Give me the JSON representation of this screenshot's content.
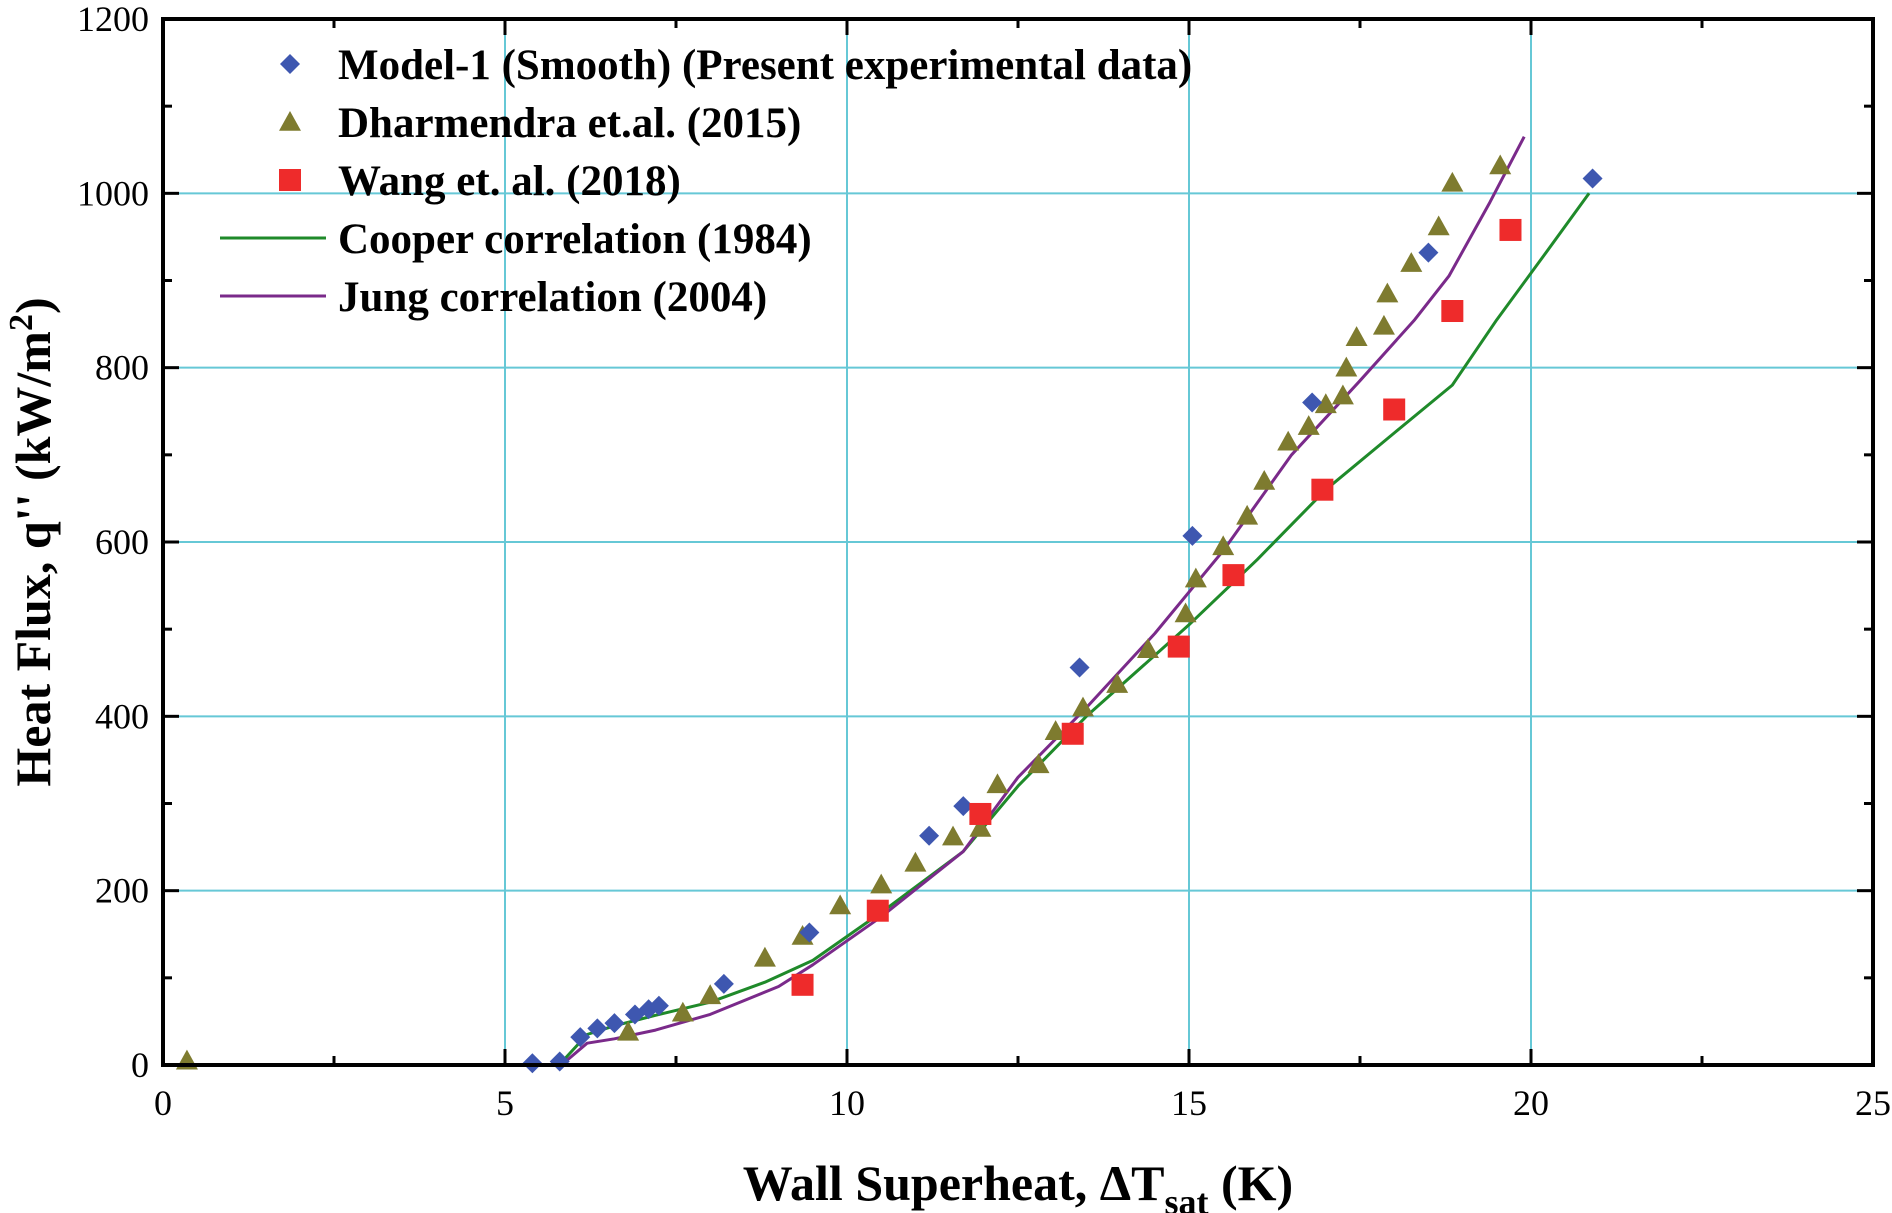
{
  "chart_data": {
    "type": "scatter",
    "xlabel_main": "Wall Superheat, ΔT",
    "xlabel_sub": "sat",
    "xlabel_unit": " (K)",
    "ylabel_main": "Heat Flux, q'' (kW/m",
    "ylabel_sup": "2",
    "ylabel_close": ")",
    "xlim": [
      0,
      25
    ],
    "ylim": [
      0,
      1200
    ],
    "xticks": [
      0,
      5,
      10,
      15,
      20,
      25
    ],
    "yticks": [
      0,
      200,
      400,
      600,
      800,
      1000,
      1200
    ],
    "grid": true,
    "legend_position": "top-left",
    "colors": {
      "grid": "#66c8d6",
      "model1": "#3e57b0",
      "dharmendra": "#7e7b2f",
      "wang": "#ee2b2b",
      "cooper": "#1f8a2a",
      "jung": "#7a2a8a"
    },
    "series": [
      {
        "name": "Model-1 (Smooth) (Present experimental data)",
        "kind": "scatter",
        "marker": "diamond",
        "color_key": "model1",
        "points": [
          [
            5.4,
            2
          ],
          [
            5.8,
            4
          ],
          [
            6.1,
            32
          ],
          [
            6.35,
            42
          ],
          [
            6.6,
            48
          ],
          [
            6.9,
            58
          ],
          [
            7.1,
            64
          ],
          [
            7.25,
            68
          ],
          [
            8.2,
            93
          ],
          [
            9.45,
            152
          ],
          [
            11.2,
            263
          ],
          [
            11.7,
            297
          ],
          [
            13.4,
            456
          ],
          [
            15.05,
            607
          ],
          [
            16.8,
            760
          ],
          [
            18.5,
            932
          ],
          [
            20.9,
            1017
          ]
        ]
      },
      {
        "name": "Dharmendra et.al. (2015)",
        "kind": "scatter",
        "marker": "triangle",
        "color_key": "dharmendra",
        "points": [
          [
            0.35,
            5
          ],
          [
            6.8,
            38
          ],
          [
            7.6,
            60
          ],
          [
            8.0,
            80
          ],
          [
            8.8,
            123
          ],
          [
            9.35,
            148
          ],
          [
            9.9,
            183
          ],
          [
            10.5,
            207
          ],
          [
            11.0,
            232
          ],
          [
            11.55,
            262
          ],
          [
            11.95,
            272
          ],
          [
            12.2,
            322
          ],
          [
            12.8,
            345
          ],
          [
            13.05,
            383
          ],
          [
            13.45,
            410
          ],
          [
            13.95,
            437
          ],
          [
            14.4,
            477
          ],
          [
            14.95,
            518
          ],
          [
            15.1,
            558
          ],
          [
            15.5,
            595
          ],
          [
            15.85,
            630
          ],
          [
            16.1,
            670
          ],
          [
            16.45,
            715
          ],
          [
            16.75,
            733
          ],
          [
            17.0,
            758
          ],
          [
            17.25,
            768
          ],
          [
            17.3,
            800
          ],
          [
            17.45,
            835
          ],
          [
            17.85,
            848
          ],
          [
            17.9,
            885
          ],
          [
            18.25,
            920
          ],
          [
            18.65,
            962
          ],
          [
            18.85,
            1012
          ],
          [
            19.55,
            1032
          ]
        ]
      },
      {
        "name": "Wang et. al. (2018)",
        "kind": "scatter",
        "marker": "square",
        "color_key": "wang",
        "points": [
          [
            9.35,
            92
          ],
          [
            10.45,
            177
          ],
          [
            11.95,
            288
          ],
          [
            13.3,
            380
          ],
          [
            14.85,
            480
          ],
          [
            15.65,
            562
          ],
          [
            16.95,
            660
          ],
          [
            18.0,
            752
          ],
          [
            18.85,
            865
          ],
          [
            19.7,
            958
          ]
        ]
      },
      {
        "name": "Cooper correlation (1984)",
        "kind": "line",
        "color_key": "cooper",
        "points": [
          [
            5.85,
            5
          ],
          [
            6.2,
            35
          ],
          [
            6.6,
            45
          ],
          [
            7.2,
            57
          ],
          [
            8.0,
            72
          ],
          [
            8.8,
            95
          ],
          [
            9.5,
            120
          ],
          [
            10.5,
            175
          ],
          [
            11.7,
            245
          ],
          [
            12.5,
            320
          ],
          [
            13.5,
            400
          ],
          [
            15.0,
            505
          ],
          [
            16.0,
            580
          ],
          [
            17.0,
            660
          ],
          [
            18.0,
            725
          ],
          [
            18.85,
            780
          ],
          [
            19.5,
            855
          ],
          [
            20.2,
            930
          ],
          [
            20.85,
            1000
          ]
        ]
      },
      {
        "name": "Jung correlation (2004)",
        "kind": "line",
        "color_key": "jung",
        "points": [
          [
            5.9,
            5
          ],
          [
            6.2,
            25
          ],
          [
            6.6,
            30
          ],
          [
            7.2,
            40
          ],
          [
            8.0,
            58
          ],
          [
            9.0,
            90
          ],
          [
            9.5,
            115
          ],
          [
            10.5,
            170
          ],
          [
            11.7,
            245
          ],
          [
            12.5,
            330
          ],
          [
            13.5,
            410
          ],
          [
            14.5,
            495
          ],
          [
            15.5,
            590
          ],
          [
            16.5,
            700
          ],
          [
            17.5,
            785
          ],
          [
            18.3,
            855
          ],
          [
            18.8,
            905
          ],
          [
            19.4,
            990
          ],
          [
            19.9,
            1065
          ]
        ]
      }
    ]
  }
}
